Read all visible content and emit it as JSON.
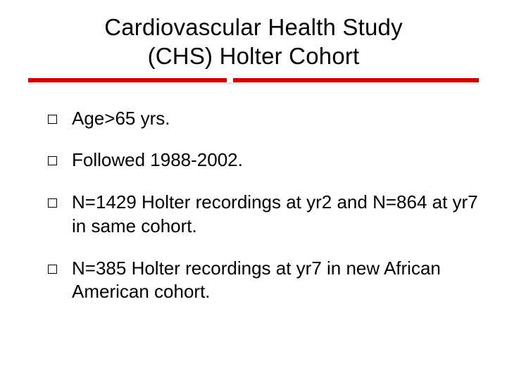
{
  "slide": {
    "title_line1": "Cardiovascular Health Study",
    "title_line2": "(CHS) Holter Cohort",
    "rule_color": "#cc0000",
    "rule_shadow_color": "#e6e6e6",
    "background_color": "#ffffff",
    "text_color": "#000000",
    "title_fontsize": 33,
    "bullet_fontsize": 26,
    "bullet_marker": "hollow-square",
    "bullets": [
      "Age>65 yrs.",
      "Followed 1988-2002.",
      "N=1429 Holter recordings at yr2 and N=864 at yr7 in same cohort.",
      "N=385 Holter recordings at yr7 in new African American cohort."
    ]
  }
}
